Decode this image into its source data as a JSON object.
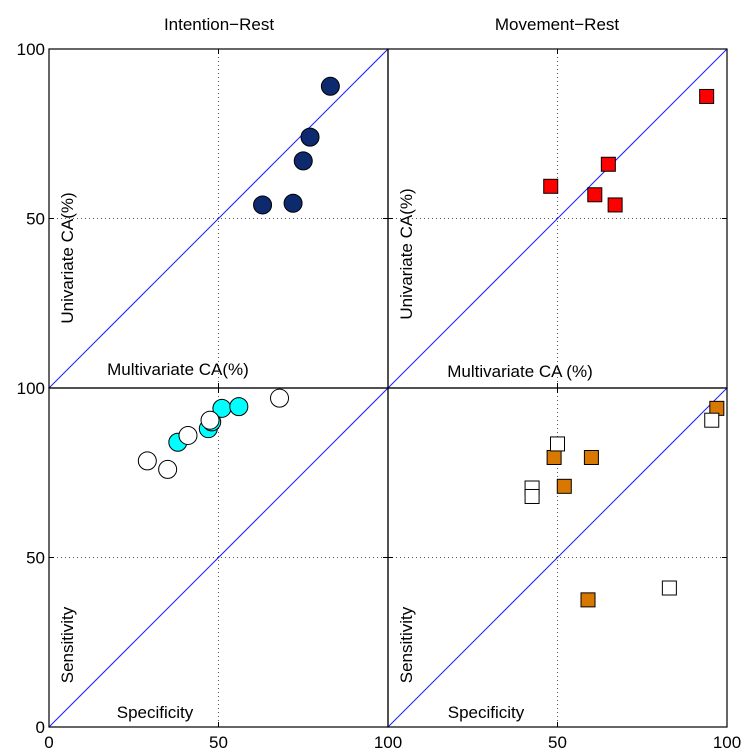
{
  "chart_data": [
    {
      "type": "scatter",
      "title": "Intention−Rest",
      "xlabel": "Multivariate CA(%)",
      "ylabel": "Univariate CA(%)",
      "xlim": [
        0,
        100
      ],
      "ylim": [
        0,
        100
      ],
      "xticks": [
        "",
        "",
        ""
      ],
      "yticks": [
        "",
        "50",
        "100"
      ],
      "grid": true,
      "diagonal": true,
      "series": [
        {
          "marker": "circle",
          "fill": "#0d2a6e",
          "points": [
            [
              63,
              54
            ],
            [
              72,
              54.5
            ],
            [
              75,
              67
            ],
            [
              77,
              74
            ],
            [
              83,
              89
            ]
          ]
        }
      ]
    },
    {
      "type": "scatter",
      "title": "Movement−Rest",
      "xlabel": "Multivariate CA (%)",
      "ylabel": "Univariate CA(%)",
      "xlim": [
        0,
        100
      ],
      "ylim": [
        0,
        100
      ],
      "xticks": [
        "",
        "",
        ""
      ],
      "yticks": [
        "",
        "",
        ""
      ],
      "grid": true,
      "diagonal": true,
      "series": [
        {
          "marker": "square",
          "fill": "#ff0000",
          "points": [
            [
              48,
              59.5
            ],
            [
              61,
              57
            ],
            [
              65,
              66
            ],
            [
              67,
              54
            ],
            [
              94,
              86
            ]
          ]
        }
      ]
    },
    {
      "type": "scatter",
      "title": "",
      "xlabel": "Specificity",
      "ylabel": "Sensitivity",
      "xlim": [
        0,
        100
      ],
      "ylim": [
        0,
        100
      ],
      "xticks": [
        "0",
        "50",
        "100"
      ],
      "yticks": [
        "0",
        "50",
        "100"
      ],
      "grid": true,
      "diagonal": true,
      "series": [
        {
          "marker": "circle",
          "fill": "#00ffff",
          "points": [
            [
              38,
              84
            ],
            [
              47,
              88
            ],
            [
              48,
              90
            ],
            [
              51,
              94
            ],
            [
              56,
              94.5
            ]
          ]
        },
        {
          "marker": "circle",
          "fill": "#ffffff",
          "points": [
            [
              29,
              78.5
            ],
            [
              35,
              76
            ],
            [
              41,
              86
            ],
            [
              47.5,
              90.5
            ],
            [
              68,
              97
            ]
          ]
        }
      ]
    },
    {
      "type": "scatter",
      "title": "",
      "xlabel": "Specificity",
      "ylabel": "Sensitivity",
      "xlim": [
        0,
        100
      ],
      "ylim": [
        0,
        100
      ],
      "xticks": [
        "",
        "50",
        "100"
      ],
      "yticks": [
        "",
        "",
        ""
      ],
      "grid": true,
      "diagonal": true,
      "series": [
        {
          "marker": "square",
          "fill": "#d97800",
          "points": [
            [
              49,
              79.5
            ],
            [
              52,
              71
            ],
            [
              59,
              37.5
            ],
            [
              60,
              79.5
            ],
            [
              97,
              94
            ]
          ]
        },
        {
          "marker": "square",
          "fill": "#ffffff",
          "points": [
            [
              42.5,
              70.5
            ],
            [
              42.5,
              68
            ],
            [
              50,
              83.5
            ],
            [
              83,
              41
            ],
            [
              95.5,
              90.5
            ]
          ]
        }
      ]
    }
  ]
}
